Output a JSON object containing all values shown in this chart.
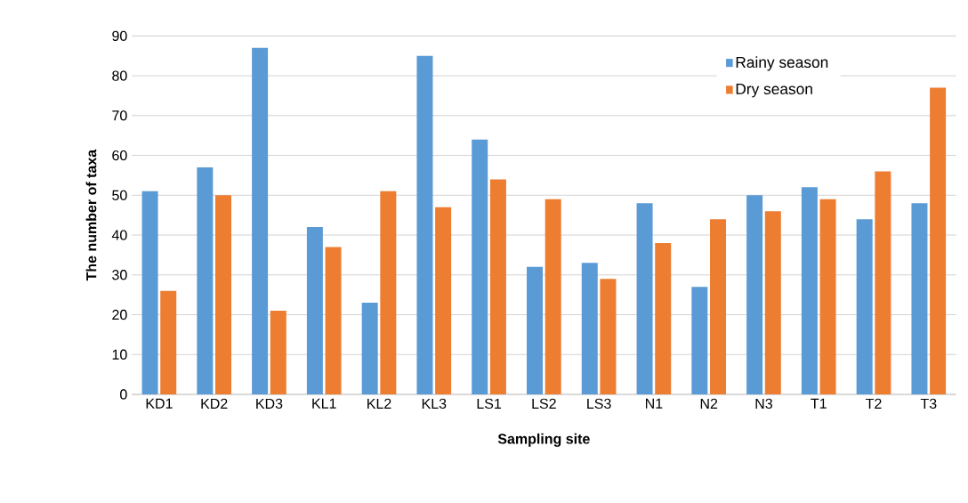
{
  "chart_data": {
    "type": "bar",
    "xlabel": "Sampling site",
    "ylabel": "The number of taxa",
    "categories": [
      "KD1",
      "KD2",
      "KD3",
      "KL1",
      "KL2",
      "KL3",
      "LS1",
      "LS2",
      "LS3",
      "N1",
      "N2",
      "N3",
      "T1",
      "T2",
      "T3"
    ],
    "series": [
      {
        "name": "Rainy season",
        "color": "#5b9bd5",
        "values": [
          51,
          57,
          87,
          42,
          23,
          85,
          64,
          32,
          33,
          48,
          27,
          50,
          52,
          44,
          48
        ]
      },
      {
        "name": "Dry season",
        "color": "#ed7d31",
        "values": [
          26,
          50,
          21,
          37,
          51,
          47,
          54,
          49,
          29,
          38,
          44,
          46,
          49,
          56,
          77
        ]
      }
    ],
    "ylim": [
      0,
      90
    ],
    "yticks": [
      0,
      10,
      20,
      30,
      40,
      50,
      60,
      70,
      80,
      90
    ],
    "grid": "y",
    "legend": "top right"
  }
}
